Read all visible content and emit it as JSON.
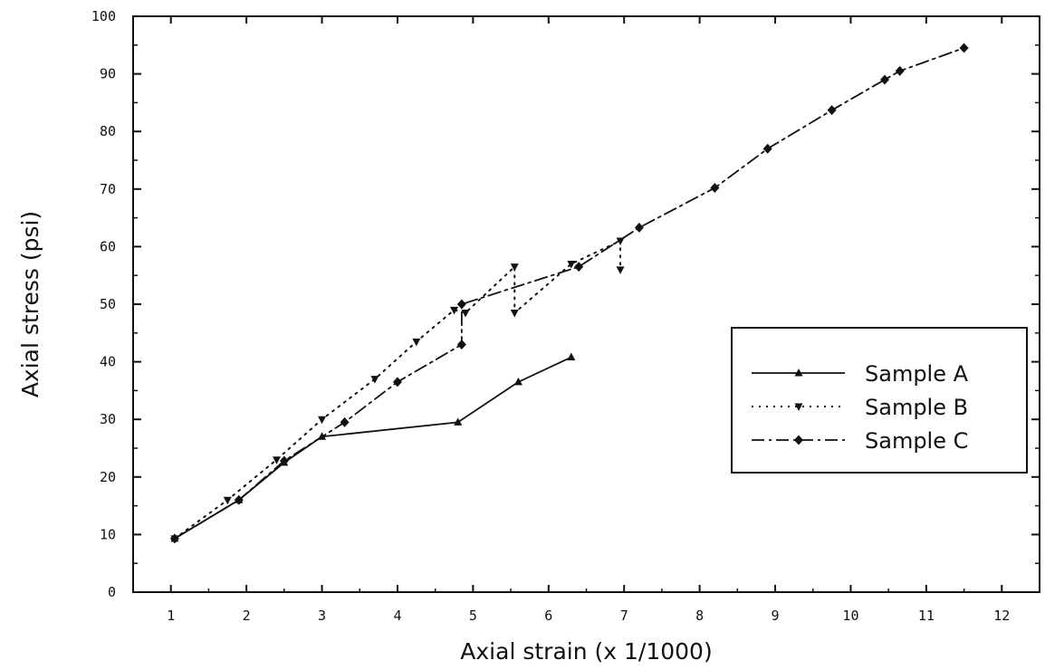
{
  "chart_data": {
    "type": "line",
    "title": "",
    "xlabel": "Axial strain (x 1/1000)",
    "ylabel": "Axial stress (psi)",
    "xlim": [
      0.5,
      12.5
    ],
    "ylim": [
      0,
      100
    ],
    "xticks": [
      1,
      2,
      3,
      4,
      5,
      6,
      7,
      8,
      9,
      10,
      11,
      12
    ],
    "yticks": [
      0,
      10,
      20,
      30,
      40,
      50,
      60,
      70,
      80,
      90,
      100
    ],
    "grid": false,
    "legend_position": "right",
    "series": [
      {
        "name": "Sample A",
        "line_style": "solid",
        "marker": "triangle-up",
        "color": "#111111",
        "points": [
          [
            1.05,
            9.3
          ],
          [
            1.9,
            16.0
          ],
          [
            2.5,
            22.5
          ],
          [
            3.0,
            27.0
          ],
          [
            4.8,
            29.5
          ],
          [
            5.6,
            36.5
          ],
          [
            6.3,
            40.8
          ]
        ]
      },
      {
        "name": "Sample B",
        "line_style": "dotted",
        "marker": "triangle-down",
        "color": "#111111",
        "points": [
          [
            1.05,
            9.3
          ],
          [
            1.75,
            16.0
          ],
          [
            2.4,
            23.0
          ],
          [
            3.0,
            30.0
          ],
          [
            3.7,
            37.0
          ],
          [
            4.25,
            43.5
          ],
          [
            4.75,
            49.0
          ],
          [
            4.9,
            48.5
          ],
          [
            5.55,
            56.5
          ],
          [
            5.55,
            48.5
          ],
          [
            6.3,
            57.0
          ],
          [
            6.95,
            61.0
          ],
          [
            6.95,
            56.0
          ]
        ]
      },
      {
        "name": "Sample C",
        "line_style": "dash-dot",
        "marker": "diamond",
        "color": "#111111",
        "points": [
          [
            1.05,
            9.3
          ],
          [
            1.9,
            16.0
          ],
          [
            2.5,
            22.8
          ],
          [
            3.3,
            29.5
          ],
          [
            4.0,
            36.5
          ],
          [
            4.85,
            43.0
          ],
          [
            4.85,
            50.0
          ],
          [
            6.4,
            56.5
          ],
          [
            7.2,
            63.3
          ],
          [
            8.2,
            70.2
          ],
          [
            8.9,
            77.0
          ],
          [
            9.75,
            83.7
          ],
          [
            10.45,
            89.0
          ],
          [
            10.65,
            90.5
          ],
          [
            11.5,
            94.5
          ]
        ]
      }
    ]
  }
}
